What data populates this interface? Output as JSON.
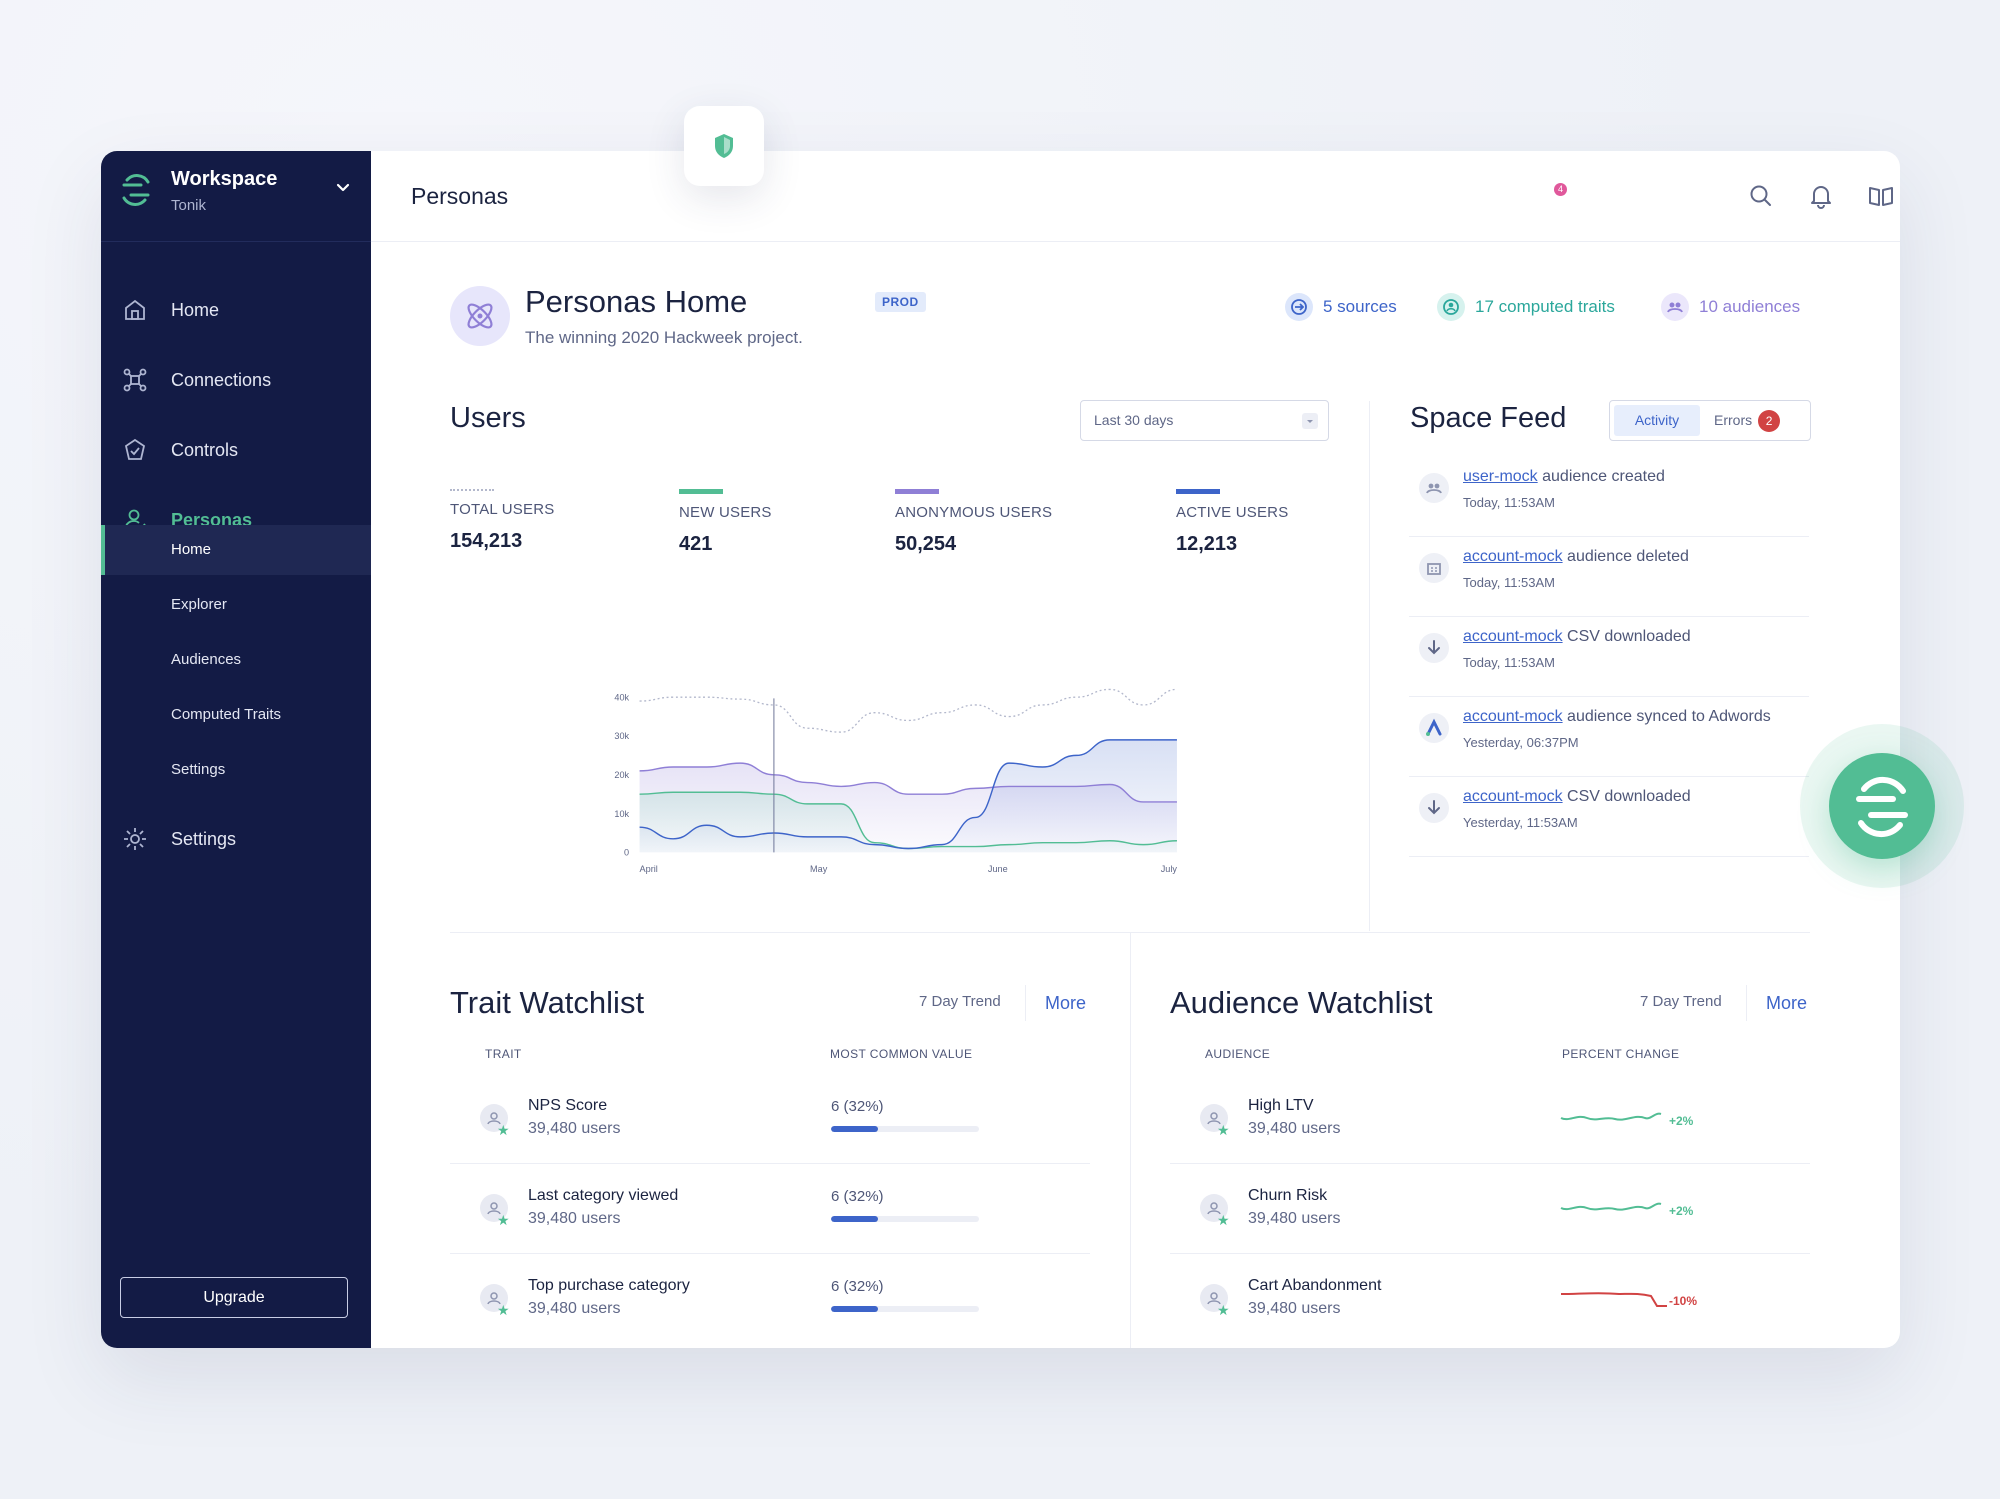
{
  "workspace": {
    "name": "Workspace",
    "user": "Tonik"
  },
  "nav": [
    {
      "label": "Home",
      "icon": "home-icon"
    },
    {
      "label": "Connections",
      "icon": "connections-icon"
    },
    {
      "label": "Controls",
      "icon": "controls-icon"
    },
    {
      "label": "Personas",
      "icon": "personas-icon",
      "active": true
    },
    {
      "label": "Settings",
      "icon": "gear-icon"
    }
  ],
  "subnav": [
    {
      "label": "Home",
      "active": true
    },
    {
      "label": "Explorer"
    },
    {
      "label": "Audiences"
    },
    {
      "label": "Computed Traits"
    },
    {
      "label": "Settings"
    }
  ],
  "upgrade_label": "Upgrade",
  "topbar": {
    "title": "Personas",
    "notification_count": "4"
  },
  "header": {
    "title": "Personas Home",
    "subtitle": "The winning 2020 Hackweek project.",
    "badge": "PROD",
    "sources": "5 sources",
    "traits": "17 computed traits",
    "audiences": "10 audiences"
  },
  "users": {
    "title": "Users",
    "range": "Last 30 days",
    "metrics": [
      {
        "label": "TOTAL USERS",
        "value": "154,213",
        "color": "#b3b8cc"
      },
      {
        "label": "NEW USERS",
        "value": "421",
        "color": "#52bd94"
      },
      {
        "label": "ANONYMOUS USERS",
        "value": "50,254",
        "color": "#8f7fd6"
      },
      {
        "label": "ACTIVE USERS",
        "value": "12,213",
        "color": "#3d64c9"
      }
    ]
  },
  "chart_data": {
    "type": "line",
    "x_labels": [
      "April",
      "May",
      "June",
      "July"
    ],
    "y_ticks": [
      "40k",
      "30k",
      "20k",
      "10k",
      "0"
    ],
    "ylim": [
      0,
      40000
    ],
    "series": [
      {
        "name": "TOTAL USERS",
        "color": "#b3b8cc",
        "values": [
          39000,
          40000,
          40000,
          39500,
          38000,
          32000,
          31000,
          36000,
          34000,
          36000,
          38000,
          35000,
          38000,
          40000,
          42000,
          38000,
          42000
        ]
      },
      {
        "name": "ANONYMOUS USERS",
        "color": "#8f7fd6",
        "values": [
          21000,
          22000,
          22000,
          23000,
          20000,
          18000,
          17000,
          18000,
          15000,
          15000,
          16500,
          17000,
          17000,
          17000,
          17500,
          13000,
          13000
        ]
      },
      {
        "name": "NEW USERS",
        "color": "#52bd94",
        "values": [
          15000,
          15500,
          15500,
          15500,
          15000,
          12500,
          12500,
          2500,
          1000,
          1500,
          1500,
          2000,
          2500,
          2500,
          3000,
          2000,
          3000
        ]
      },
      {
        "name": "ACTIVE USERS",
        "color": "#3d64c9",
        "values": [
          6500,
          3500,
          7000,
          4000,
          5000,
          4000,
          4000,
          2000,
          1000,
          2000,
          9000,
          23000,
          22000,
          25000,
          29000,
          29000,
          29000
        ]
      }
    ],
    "marker_x_index": 4,
    "grid": false
  },
  "feed": {
    "title": "Space Feed",
    "tab_activity": "Activity",
    "tab_errors": "Errors",
    "errors_count": "2",
    "items": [
      {
        "link": "user-mock",
        "text": " audience created",
        "time": "Today, 11:53AM",
        "icon": "audience-icon"
      },
      {
        "link": "account-mock",
        "text": " audience deleted",
        "time": "Today, 11:53AM",
        "icon": "building-icon"
      },
      {
        "link": "account-mock",
        "text": " CSV downloaded",
        "time": "Today, 11:53AM",
        "icon": "download-icon"
      },
      {
        "link": "account-mock",
        "text": " audience synced to Adwords",
        "time": "Yesterday, 06:37PM",
        "icon": "adwords-icon"
      },
      {
        "link": "account-mock",
        "text": " CSV downloaded",
        "time": "Yesterday, 11:53AM",
        "icon": "download-icon"
      }
    ]
  },
  "trait_watchlist": {
    "title": "Trait Watchlist",
    "trend": "7 Day Trend",
    "more": "More",
    "col1": "TRAIT",
    "col2": "MOST COMMON VALUE",
    "rows": [
      {
        "name": "NPS Score",
        "users": "39,480 users",
        "value": "6 (32%)",
        "pct": 0.32
      },
      {
        "name": "Last category viewed",
        "users": "39,480 users",
        "value": "6 (32%)",
        "pct": 0.32
      },
      {
        "name": "Top purchase category",
        "users": "39,480 users",
        "value": "6 (32%)",
        "pct": 0.32
      }
    ]
  },
  "audience_watchlist": {
    "title": "Audience Watchlist",
    "trend": "7 Day Trend",
    "more": "More",
    "col1": "AUDIENCE",
    "col2": "PERCENT CHANGE",
    "rows": [
      {
        "name": "High LTV",
        "users": "39,480 users",
        "change": "+2%",
        "color": "#52bd94"
      },
      {
        "name": "Churn Risk",
        "users": "39,480 users",
        "change": "+2%",
        "color": "#52bd94"
      },
      {
        "name": "Cart Abandonment",
        "users": "39,480 users",
        "change": "-10%",
        "color": "#d14343"
      }
    ]
  }
}
